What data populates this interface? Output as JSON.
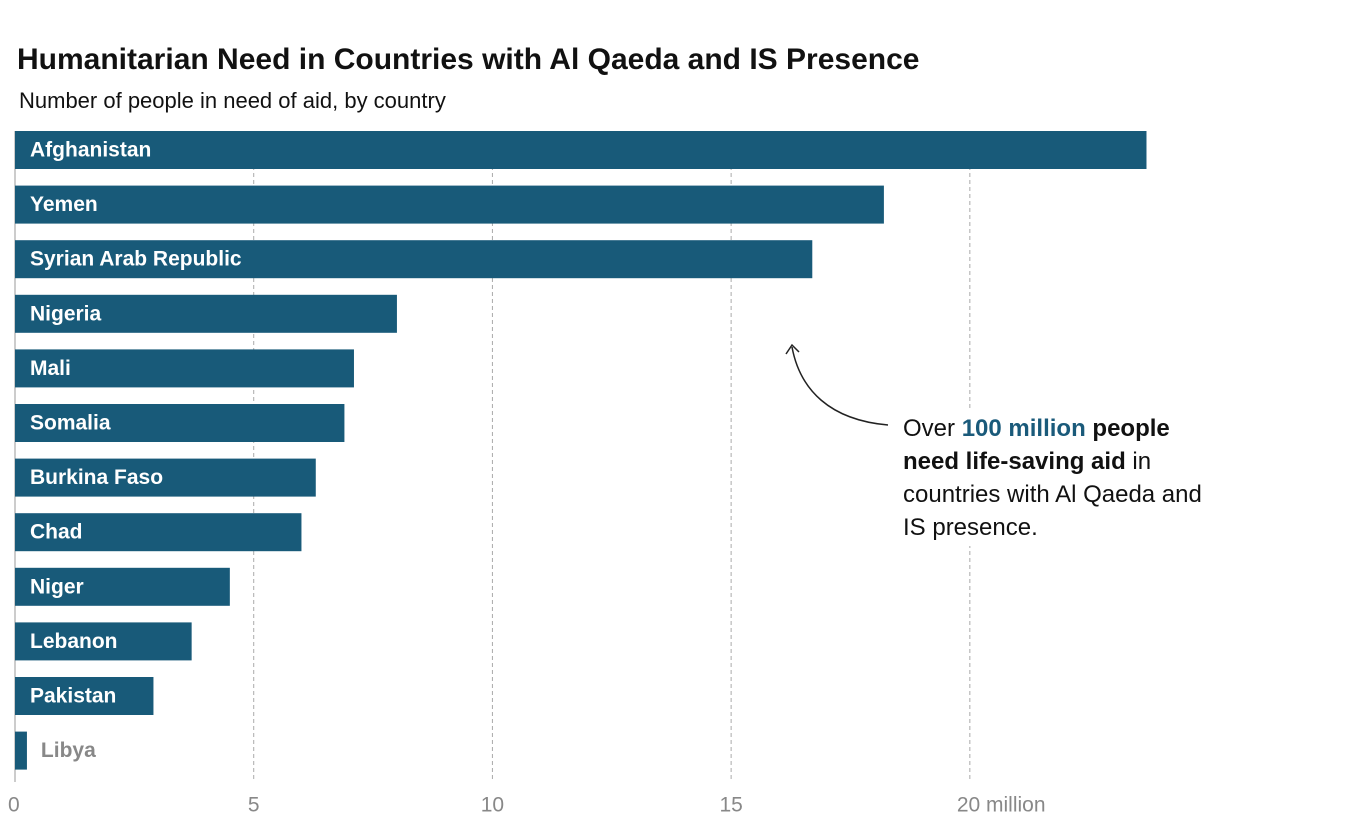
{
  "chart_data": {
    "type": "bar",
    "orientation": "horizontal",
    "title": "Humanitarian Need in Countries with Al Qaeda and IS Presence",
    "subtitle": "Number of people in need of aid, by country",
    "categories": [
      "Afghanistan",
      "Yemen",
      "Syrian Arab Republic",
      "Nigeria",
      "Mali",
      "Somalia",
      "Burkina Faso",
      "Chad",
      "Niger",
      "Lebanon",
      "Pakistan",
      "Libya"
    ],
    "values": [
      23.7,
      18.2,
      16.7,
      8.0,
      7.1,
      6.9,
      6.3,
      6.0,
      4.5,
      3.7,
      2.9,
      0.25
    ],
    "color": "#185a79",
    "xlim": [
      0,
      27.9
    ],
    "xticks": [
      0,
      5,
      10,
      15,
      {
        "value": 20,
        "label": "20 million"
      }
    ],
    "grid": true,
    "annotation": [
      {
        "text": "Over ",
        "style": "normal"
      },
      {
        "text": "100 million",
        "style": "accent"
      },
      {
        "text": " people need life-saving aid",
        "style": "bold"
      },
      {
        "text": " in countries with Al Qaeda and IS presence.",
        "style": "normal"
      }
    ]
  }
}
